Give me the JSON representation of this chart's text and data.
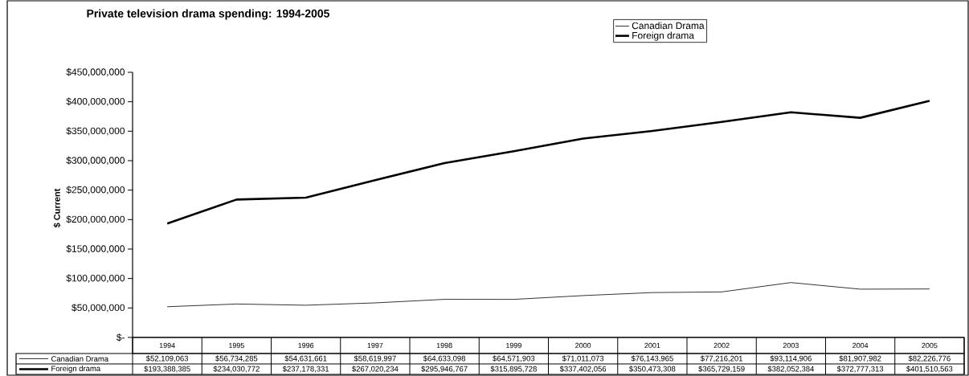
{
  "chart_data": {
    "type": "line",
    "title": "Private television drama spending:  1994-2005",
    "ylabel": "$ Current",
    "categories": [
      "1994",
      "1995",
      "1996",
      "1997",
      "1998",
      "1999",
      "2000",
      "2001",
      "2002",
      "2003",
      "2004",
      "2005"
    ],
    "series": [
      {
        "name": "Canadian Drama",
        "color": "#000000",
        "values": [
          52109063,
          56734285,
          54631661,
          58619997,
          64633098,
          64571903,
          71011073,
          76143965,
          77216201,
          93114906,
          81907982,
          82226776
        ],
        "value_labels": [
          "$52,109,063",
          "$56,734,285",
          "$54,631,661",
          "$58,619,997",
          "$64,633,098",
          "$64,571,903",
          "$71,011,073",
          "$76,143,965",
          "$77,216,201",
          "$93,114,906",
          "$81,907,982",
          "$82,226,776"
        ]
      },
      {
        "name": "Foreign drama",
        "color": "#000000",
        "values": [
          193388385,
          234030772,
          237178331,
          267020234,
          295946767,
          315895728,
          337402056,
          350473308,
          365729159,
          382052384,
          372777313,
          401510563
        ],
        "value_labels": [
          "$193,388,385",
          "$234,030,772",
          "$237,178,331",
          "$267,020,234",
          "$295,946,767",
          "$315,895,728",
          "$337,402,056",
          "$350,473,308",
          "$365,729,159",
          "$382,052,384",
          "$372,777,313",
          "$401,510,563"
        ]
      }
    ],
    "ylim": [
      0,
      450000000
    ],
    "yticks": [
      {
        "value": 0,
        "label": "$-"
      },
      {
        "value": 50000000,
        "label": "$50,000,000"
      },
      {
        "value": 100000000,
        "label": "$100,000,000"
      },
      {
        "value": 150000000,
        "label": "$150,000,000"
      },
      {
        "value": 200000000,
        "label": "$200,000,000"
      },
      {
        "value": 250000000,
        "label": "$250,000,000"
      },
      {
        "value": 300000000,
        "label": "$300,000,000"
      },
      {
        "value": 350000000,
        "label": "$350,000,000"
      },
      {
        "value": 400000000,
        "label": "$400,000,000"
      },
      {
        "value": 450000000,
        "label": "$450,000,000"
      }
    ],
    "grid": false,
    "legend": "top",
    "marker": "none",
    "line_style": "solid"
  }
}
